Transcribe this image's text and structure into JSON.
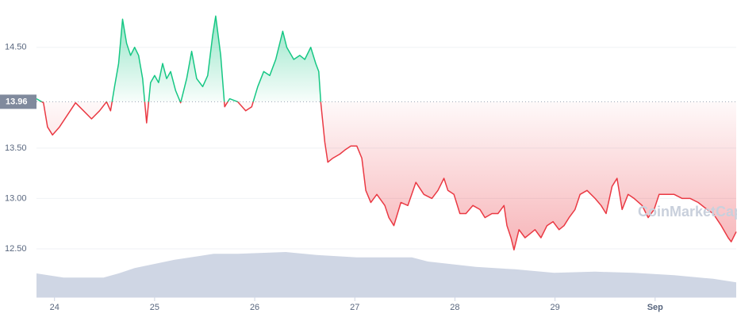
{
  "chart_data": {
    "type": "line",
    "watermark": "CoinMarketCap",
    "xlim": [
      23.82,
      30.81
    ],
    "ylim": [
      12.02,
      14.97
    ],
    "y2lim": [
      0,
      500
    ],
    "xticks": [
      24,
      25,
      26,
      27,
      28,
      29,
      {
        "value": 30,
        "label": "Sep"
      }
    ],
    "yticks": [
      {
        "value": 12.5,
        "label": "12.50"
      },
      {
        "value": 13,
        "label": "13.00"
      },
      {
        "value": 13.5,
        "label": "13.50"
      },
      {
        "value": 14.5,
        "label": "14.50"
      }
    ],
    "baseline": {
      "value": 13.96,
      "label": "13.96"
    },
    "grid": true,
    "up_color": "#16c784",
    "down_color": "#ea3943",
    "series": [
      {
        "color": "#cfd6e4",
        "axis": "y2",
        "x": [
          23.82,
          24.09,
          24.49,
          24.64,
          24.8,
          25.2,
          25.59,
          25.83,
          26.31,
          26.62,
          27.02,
          27.57,
          27.73,
          28.21,
          28.6,
          28.99,
          29.4,
          29.79,
          30.19,
          30.58,
          30.81
        ],
        "values": [
          40,
          33,
          33,
          40,
          49,
          63,
          73,
          73,
          76,
          71,
          67,
          67,
          60,
          51,
          47,
          41,
          43,
          41,
          37,
          31,
          25
        ]
      },
      {
        "color": "#16c784",
        "x": [
          23.82,
          23.89,
          23.93,
          23.98,
          24.05,
          24.13,
          24.21,
          24.29,
          24.37,
          24.45,
          24.52,
          24.56,
          24.6,
          24.64,
          24.68,
          24.72,
          24.76,
          24.8,
          24.84,
          24.88,
          24.92,
          24.96,
          25.0,
          25.04,
          25.08,
          25.12,
          25.16,
          25.21,
          25.26,
          25.32,
          25.37,
          25.42,
          25.48,
          25.53,
          25.58,
          25.61,
          25.66,
          25.7,
          25.75,
          25.83,
          25.91,
          25.97,
          26.03,
          26.09,
          26.15,
          26.21,
          26.28,
          26.32,
          26.39,
          26.45,
          26.5,
          26.56,
          26.61,
          26.64,
          26.66,
          26.7,
          26.73,
          26.78,
          26.85,
          26.9,
          26.96,
          27.02,
          27.07,
          27.11,
          27.16,
          27.22,
          27.3,
          27.34,
          27.39,
          27.46,
          27.53,
          27.61,
          27.69,
          27.77,
          27.83,
          27.89,
          27.93,
          27.99,
          28.05,
          28.11,
          28.18,
          28.25,
          28.3,
          28.37,
          28.43,
          28.49,
          28.52,
          28.56,
          28.59,
          28.64,
          28.7,
          28.75,
          28.8,
          28.86,
          28.92,
          28.98,
          29.04,
          29.09,
          29.14,
          29.2,
          29.25,
          29.32,
          29.4,
          29.46,
          29.51,
          29.57,
          29.62,
          29.67,
          29.73,
          29.79,
          29.87,
          29.93,
          29.99,
          30.04,
          30.11,
          30.19,
          30.27,
          30.35,
          30.43,
          30.52,
          30.58,
          30.66,
          30.73,
          30.76,
          30.81
        ],
        "values": [
          13.99,
          13.95,
          13.71,
          13.63,
          13.71,
          13.83,
          13.95,
          13.87,
          13.79,
          13.87,
          13.96,
          13.87,
          14.11,
          14.34,
          14.78,
          14.54,
          14.42,
          14.5,
          14.42,
          14.19,
          13.75,
          14.15,
          14.22,
          14.15,
          14.34,
          14.19,
          14.26,
          14.07,
          13.95,
          14.19,
          14.46,
          14.19,
          14.11,
          14.22,
          14.62,
          14.81,
          14.42,
          13.91,
          13.99,
          13.96,
          13.87,
          13.91,
          14.11,
          14.26,
          14.22,
          14.38,
          14.66,
          14.5,
          14.38,
          14.42,
          14.38,
          14.5,
          14.34,
          14.26,
          13.95,
          13.56,
          13.36,
          13.4,
          13.44,
          13.48,
          13.52,
          13.52,
          13.4,
          13.08,
          12.96,
          13.04,
          12.93,
          12.81,
          12.73,
          12.96,
          12.93,
          13.16,
          13.04,
          13.0,
          13.08,
          13.2,
          13.08,
          13.04,
          12.85,
          12.85,
          12.93,
          12.89,
          12.81,
          12.85,
          12.85,
          12.93,
          12.73,
          12.61,
          12.49,
          12.69,
          12.61,
          12.65,
          12.69,
          12.61,
          12.73,
          12.77,
          12.69,
          12.73,
          12.81,
          12.89,
          13.04,
          13.08,
          13.0,
          12.93,
          12.85,
          13.12,
          13.2,
          12.89,
          13.04,
          13.0,
          12.93,
          12.81,
          12.89,
          13.04,
          13.04,
          13.04,
          13.0,
          13.0,
          12.96,
          12.89,
          12.85,
          12.73,
          12.61,
          12.57,
          12.67
        ]
      }
    ]
  }
}
